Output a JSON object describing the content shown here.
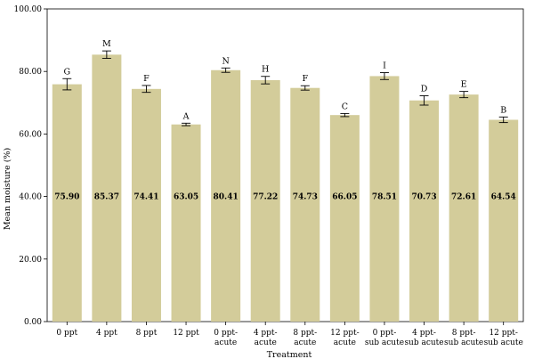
{
  "chart_data": {
    "type": "bar",
    "title": "",
    "xlabel": "Treatment",
    "ylabel": "Mean moisture (%)",
    "ylim": [
      0,
      100
    ],
    "yticks": [
      0,
      20,
      40,
      60,
      80,
      100
    ],
    "ytick_labels": [
      "0.00",
      "20.00",
      "40.00",
      "60.00",
      "80.00",
      "100.00"
    ],
    "grid": false,
    "bar_color": "#d3cc9a",
    "categories": [
      [
        "0 ppt"
      ],
      [
        "4 ppt"
      ],
      [
        "8 ppt"
      ],
      [
        "12 ppt"
      ],
      [
        "0 ppt-",
        "acute"
      ],
      [
        "4 ppt-",
        "acute"
      ],
      [
        "8 ppt-",
        "acute"
      ],
      [
        "12 ppt-",
        "acute"
      ],
      [
        "0 ppt-",
        "sub acute"
      ],
      [
        "4 ppt-",
        "sub acute"
      ],
      [
        "8 ppt-",
        "sub acute"
      ],
      [
        "12 ppt-",
        "sub acute"
      ]
    ],
    "values": [
      75.9,
      85.37,
      74.41,
      63.05,
      80.41,
      77.22,
      74.73,
      66.05,
      78.51,
      70.73,
      72.61,
      64.54
    ],
    "value_labels": [
      "75.90",
      "85.37",
      "74.41",
      "63.05",
      "80.41",
      "77.22",
      "74.73",
      "66.05",
      "78.51",
      "70.73",
      "72.61",
      "64.54"
    ],
    "errors": [
      1.8,
      1.2,
      1.1,
      0.4,
      0.7,
      1.2,
      0.7,
      0.5,
      1.1,
      1.5,
      1.0,
      0.9
    ],
    "significance_letters": [
      "G",
      "M",
      "F",
      "A",
      "N",
      "H",
      "F",
      "C",
      "I",
      "D",
      "E",
      "B"
    ]
  }
}
